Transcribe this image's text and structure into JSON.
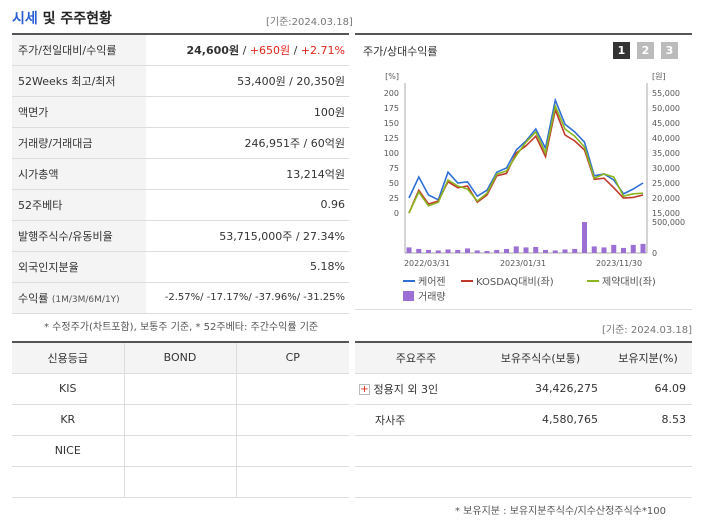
{
  "header": {
    "title_main": "시세",
    "title_rest": " 및 주주현황",
    "date": "[기준:2024.03.18]"
  },
  "quote": {
    "rows": [
      {
        "label": "주가/전일대비/수익률",
        "price": "24,600원",
        "sep1": " / ",
        "change": "+650원",
        "sep2": " / ",
        "rate": "+2.71%"
      },
      {
        "label": "52Weeks 최고/최저",
        "value": "53,400원 / 20,350원"
      },
      {
        "label": "액면가",
        "value": "100원"
      },
      {
        "label": "거래량/거래대금",
        "value": "246,951주 / 60억원"
      },
      {
        "label": "시가총액",
        "value": "13,214억원"
      },
      {
        "label": "52주베타",
        "value": "0.96"
      },
      {
        "label": "발행주식수/유동비율",
        "value": "53,715,000주 / 27.34%"
      },
      {
        "label": "외국인지분율",
        "value": "5.18%"
      },
      {
        "label": "수익률",
        "label_sub": "(1M/3M/6M/1Y)",
        "value": "-2.57%/ -17.17%/ -37.96%/ -31.25%"
      }
    ],
    "note": "* 수정주가(차트포함), 보통주 기준, * 52주베타: 주간수익률 기준"
  },
  "chart_panel": {
    "title": "주가/상대수익률",
    "pages": [
      "1",
      "2",
      "3"
    ],
    "date": "[기준: 2024.03.18]"
  },
  "chart_data": {
    "type": "line",
    "ylabel_left_unit": "[%]",
    "ylabel_right_unit": "[원]",
    "y_left_ticks": [
      "200",
      "175",
      "150",
      "125",
      "100",
      "75",
      "50",
      "25",
      "0"
    ],
    "y_right_ticks": [
      "55,000",
      "50,000",
      "45,000",
      "40,000",
      "35,000",
      "30,000",
      "25,000",
      "20,000",
      "15,000"
    ],
    "volume_tick": "500,000",
    "volume_zero": "0",
    "x_ticks": [
      "2022/03/31",
      "2023/01/31",
      "2023/11/30"
    ],
    "ylim_left": [
      0,
      200
    ],
    "series": [
      {
        "name": "케어젠",
        "color": "#2f6fd6",
        "values": [
          25,
          60,
          30,
          22,
          68,
          50,
          52,
          28,
          38,
          68,
          75,
          105,
          120,
          140,
          108,
          188,
          148,
          135,
          118,
          62,
          65,
          55,
          32,
          40,
          50
        ]
      },
      {
        "name": "KOSDAQ대비(좌)",
        "color": "#c0392b",
        "values": [
          0,
          38,
          15,
          20,
          52,
          42,
          45,
          18,
          30,
          62,
          66,
          100,
          112,
          128,
          94,
          172,
          130,
          120,
          105,
          56,
          58,
          42,
          25,
          26,
          30
        ]
      },
      {
        "name": "제약대비(좌)",
        "color": "#8ab520",
        "values": [
          0,
          35,
          12,
          18,
          55,
          45,
          40,
          20,
          33,
          65,
          70,
          96,
          118,
          135,
          100,
          178,
          140,
          128,
          110,
          58,
          65,
          60,
          28,
          32,
          33
        ]
      }
    ],
    "volume": {
      "name": "거래량",
      "color": "#9b6fd4",
      "values": [
        110000,
        80000,
        60000,
        50000,
        70000,
        60000,
        90000,
        50000,
        40000,
        60000,
        80000,
        130000,
        110000,
        120000,
        60000,
        50000,
        70000,
        80000,
        610000,
        130000,
        110000,
        160000,
        100000,
        160000,
        180000
      ]
    }
  },
  "credit": {
    "headers": [
      "신용등급",
      "BOND",
      "CP"
    ],
    "rows": [
      "KIS",
      "KR",
      "NICE",
      ""
    ]
  },
  "holders": {
    "headers": [
      "주요주주",
      "보유주식수(보통)",
      "보유지분(%)"
    ],
    "rows": [
      {
        "name": "정용지 외 3인",
        "shares": "34,426,275",
        "pct": "64.09",
        "expand": "+"
      },
      {
        "name": "자사주",
        "shares": "4,580,765",
        "pct": "8.53"
      }
    ],
    "note": "* 보유지분 : 보유지분주식수/지수산정주식수*100"
  }
}
